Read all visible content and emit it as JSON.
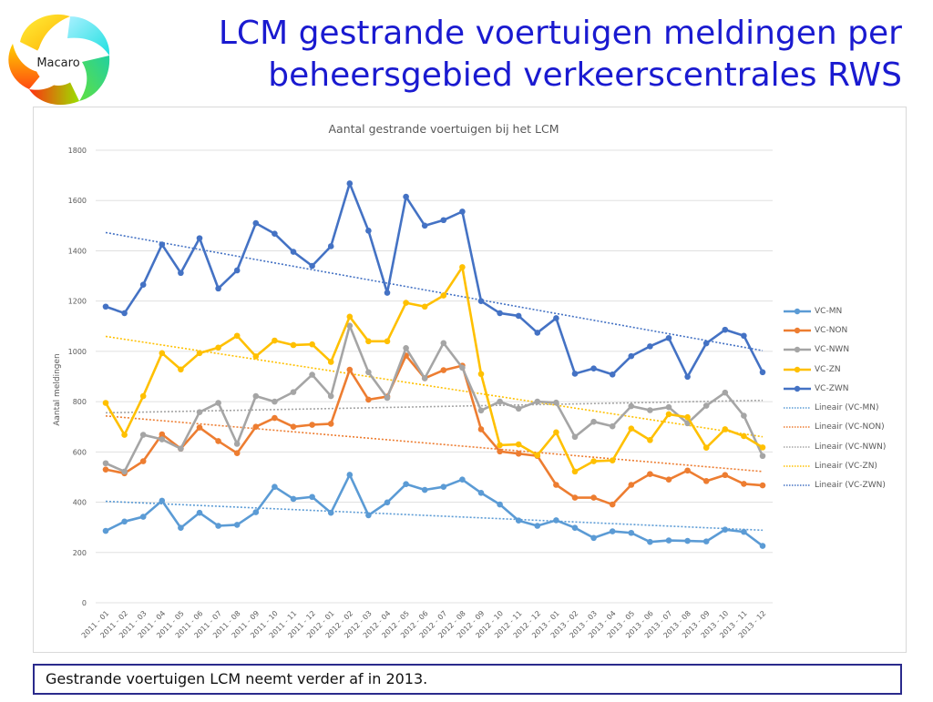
{
  "slide": {
    "logo_text": "Macaro",
    "title_line1": "LCM gestrande voertuigen meldingen per",
    "title_line2": "beheersgebied verkeerscentrales RWS",
    "caption": "Gestrande voertuigen LCM neemt verder af in 2013."
  },
  "colors": {
    "title": "#1a1ad0",
    "VC-MN": "#5b9bd5",
    "VC-NON": "#ed7d31",
    "VC-NWN": "#a5a5a5",
    "VC-ZN": "#ffc000",
    "VC-ZWN": "#4472c4"
  },
  "legend": [
    {
      "label": "VC-MN",
      "kind": "series",
      "series": "VC-MN"
    },
    {
      "label": "VC-NON",
      "kind": "series",
      "series": "VC-NON"
    },
    {
      "label": "VC-NWN",
      "kind": "series",
      "series": "VC-NWN"
    },
    {
      "label": "VC-ZN",
      "kind": "series",
      "series": "VC-ZN"
    },
    {
      "label": "VC-ZWN",
      "kind": "series",
      "series": "VC-ZWN"
    },
    {
      "label": "Lineair (VC-MN)",
      "kind": "trend",
      "series": "VC-MN"
    },
    {
      "label": "Lineair (VC-NON)",
      "kind": "trend",
      "series": "VC-NON"
    },
    {
      "label": "Lineair (VC-NWN)",
      "kind": "trend",
      "series": "VC-NWN"
    },
    {
      "label": "Lineair (VC-ZN)",
      "kind": "trend",
      "series": "VC-ZN"
    },
    {
      "label": "Lineair (VC-ZWN)",
      "kind": "trend",
      "series": "VC-ZWN"
    }
  ],
  "chart_data": {
    "type": "line",
    "title": "Aantal gestrande voertuigen bij het LCM",
    "xlabel": "",
    "ylabel": "Aantal meldingen",
    "ylim": [
      0,
      1800
    ],
    "yticks": [
      0,
      200,
      400,
      600,
      800,
      1000,
      1200,
      1400,
      1600,
      1800
    ],
    "grid": true,
    "legend_position": "right",
    "trendlines": "linear per series",
    "categories": [
      "2011 - 01",
      "2011 - 02",
      "2011 - 03",
      "2011 - 04",
      "2011 - 05",
      "2011 - 06",
      "2011 - 07",
      "2011 - 08",
      "2011 - 09",
      "2011 - 10",
      "2011 - 11",
      "2011 - 12",
      "2012 - 01",
      "2012 - 02",
      "2012 - 03",
      "2012 - 04",
      "2012 - 05",
      "2012 - 06",
      "2012 - 07",
      "2012 - 08",
      "2012 - 09",
      "2012 - 10",
      "2012 - 11",
      "2012 - 12",
      "2013 - 01",
      "2013 - 02",
      "2013 - 03",
      "2013 - 04",
      "2013 - 05",
      "2013 - 06",
      "2013 - 07",
      "2013 - 08",
      "2013 - 09",
      "2013 - 10",
      "2013 - 11",
      "2013 - 12"
    ],
    "series": [
      {
        "name": "VC-MN",
        "values": [
          286,
          323,
          342,
          406,
          298,
          358,
          306,
          310,
          360,
          461,
          413,
          421,
          358,
          509,
          348,
          399,
          472,
          449,
          461,
          490,
          437,
          391,
          327,
          306,
          328,
          298,
          258,
          284,
          278,
          242,
          248,
          246,
          244,
          291,
          282,
          226
        ]
      },
      {
        "name": "VC-NON",
        "values": [
          530,
          515,
          563,
          670,
          613,
          697,
          643,
          595,
          700,
          735,
          700,
          708,
          712,
          927,
          808,
          820,
          983,
          893,
          925,
          943,
          690,
          602,
          593,
          584,
          469,
          418,
          418,
          391,
          469,
          512,
          490,
          526,
          484,
          508,
          473,
          467
        ]
      },
      {
        "name": "VC-NWN",
        "values": [
          555,
          522,
          668,
          650,
          613,
          758,
          795,
          632,
          822,
          800,
          838,
          907,
          822,
          1102,
          917,
          815,
          1013,
          893,
          1033,
          935,
          765,
          800,
          772,
          800,
          796,
          660,
          720,
          702,
          782,
          766,
          778,
          714,
          784,
          836,
          744,
          584
        ]
      },
      {
        "name": "VC-ZN",
        "values": [
          795,
          668,
          822,
          993,
          928,
          993,
          1015,
          1062,
          980,
          1043,
          1025,
          1028,
          958,
          1138,
          1040,
          1040,
          1193,
          1178,
          1222,
          1335,
          910,
          627,
          630,
          587,
          678,
          522,
          563,
          566,
          693,
          647,
          750,
          738,
          617,
          690,
          663,
          618
        ]
      },
      {
        "name": "VC-ZWN",
        "values": [
          1178,
          1152,
          1265,
          1425,
          1312,
          1450,
          1250,
          1322,
          1510,
          1468,
          1396,
          1340,
          1418,
          1668,
          1480,
          1233,
          1615,
          1500,
          1522,
          1556,
          1200,
          1152,
          1141,
          1074,
          1132,
          911,
          932,
          908,
          981,
          1020,
          1053,
          899,
          1032,
          1086,
          1062,
          917
        ]
      }
    ]
  }
}
